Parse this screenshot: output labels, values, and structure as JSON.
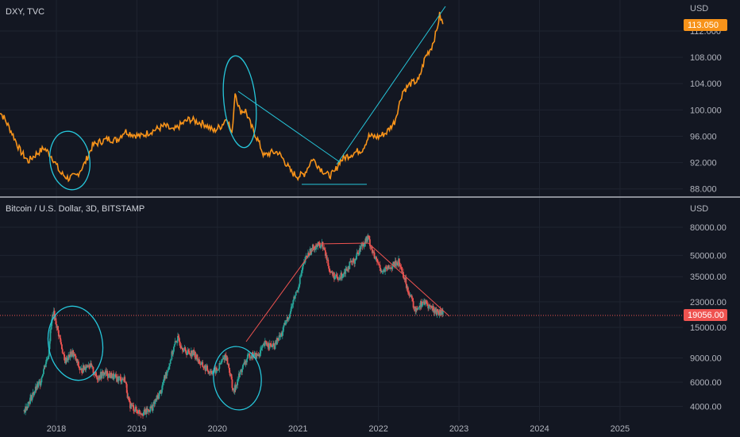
{
  "chart_data": [
    {
      "type": "line",
      "title": "DXY, TVC",
      "currency": "USD",
      "color": "#f7931a",
      "last_value": 113.05,
      "last_label": "113.050",
      "ylim": [
        87,
        115.5
      ],
      "y_ticks": [
        {
          "value": 88,
          "label": "88.000"
        },
        {
          "value": 92,
          "label": "92.000"
        },
        {
          "value": 96,
          "label": "96.000"
        },
        {
          "value": 100,
          "label": "100.000"
        },
        {
          "value": 104,
          "label": "104.000"
        },
        {
          "value": 108,
          "label": "108.000"
        },
        {
          "value": 112,
          "label": "112.000"
        }
      ],
      "points": [
        [
          2017.25,
          100.6
        ],
        [
          2017.35,
          98.8
        ],
        [
          2017.45,
          96.5
        ],
        [
          2017.55,
          93.8
        ],
        [
          2017.65,
          92.2
        ],
        [
          2017.75,
          93.3
        ],
        [
          2017.85,
          94.2
        ],
        [
          2017.95,
          92.8
        ],
        [
          2018.05,
          90.4
        ],
        [
          2018.15,
          89.6
        ],
        [
          2018.25,
          90.0
        ],
        [
          2018.35,
          91.8
        ],
        [
          2018.45,
          94.6
        ],
        [
          2018.55,
          95.2
        ],
        [
          2018.65,
          95.6
        ],
        [
          2018.75,
          95.4
        ],
        [
          2018.85,
          96.8
        ],
        [
          2018.95,
          96.3
        ],
        [
          2019.05,
          96.0
        ],
        [
          2019.15,
          96.6
        ],
        [
          2019.25,
          97.1
        ],
        [
          2019.35,
          97.6
        ],
        [
          2019.45,
          96.8
        ],
        [
          2019.55,
          97.8
        ],
        [
          2019.65,
          98.6
        ],
        [
          2019.75,
          98.2
        ],
        [
          2019.85,
          97.8
        ],
        [
          2019.95,
          96.8
        ],
        [
          2020.05,
          97.6
        ],
        [
          2020.12,
          98.9
        ],
        [
          2020.18,
          96.2
        ],
        [
          2020.22,
          102.8
        ],
        [
          2020.28,
          99.8
        ],
        [
          2020.35,
          99.9
        ],
        [
          2020.42,
          97.5
        ],
        [
          2020.5,
          95.5
        ],
        [
          2020.58,
          93.0
        ],
        [
          2020.66,
          93.5
        ],
        [
          2020.75,
          93.6
        ],
        [
          2020.83,
          92.3
        ],
        [
          2020.92,
          90.5
        ],
        [
          2021.0,
          89.9
        ],
        [
          2021.08,
          90.3
        ],
        [
          2021.18,
          92.6
        ],
        [
          2021.28,
          91.1
        ],
        [
          2021.38,
          90.0
        ],
        [
          2021.45,
          90.4
        ],
        [
          2021.52,
          92.2
        ],
        [
          2021.6,
          92.9
        ],
        [
          2021.7,
          93.5
        ],
        [
          2021.8,
          94.0
        ],
        [
          2021.88,
          96.0
        ],
        [
          2022.0,
          95.9
        ],
        [
          2022.1,
          96.6
        ],
        [
          2022.2,
          98.2
        ],
        [
          2022.3,
          102.8
        ],
        [
          2022.4,
          104.0
        ],
        [
          2022.5,
          104.5
        ],
        [
          2022.58,
          108.0
        ],
        [
          2022.66,
          109.6
        ],
        [
          2022.72,
          111.9
        ],
        [
          2022.76,
          114.4
        ],
        [
          2022.8,
          113.05
        ]
      ]
    },
    {
      "type": "line",
      "title": "Bitcoin / U.S. Dollar, 3D, BITSTAMP",
      "currency": "USD",
      "color": "#26a69a",
      "last_value": 19056,
      "last_label": "19056.00",
      "ylim": [
        3300,
        110000
      ],
      "scale": "log",
      "y_ticks": [
        {
          "value": 4000,
          "label": "4000.00"
        },
        {
          "value": 6000,
          "label": "6000.00"
        },
        {
          "value": 9000,
          "label": "9000.00"
        },
        {
          "value": 15000,
          "label": "15000.00"
        },
        {
          "value": 23000,
          "label": "23000.00"
        },
        {
          "value": 35000,
          "label": "35000.00"
        },
        {
          "value": 50000,
          "label": "50000.00"
        },
        {
          "value": 80000,
          "label": "80000.00"
        }
      ],
      "points": [
        [
          2017.6,
          3700
        ],
        [
          2017.7,
          4800
        ],
        [
          2017.8,
          6000
        ],
        [
          2017.9,
          9500
        ],
        [
          2017.96,
          19500
        ],
        [
          2018.02,
          14000
        ],
        [
          2018.1,
          8500
        ],
        [
          2018.2,
          9800
        ],
        [
          2018.3,
          7200
        ],
        [
          2018.4,
          8200
        ],
        [
          2018.5,
          6500
        ],
        [
          2018.6,
          7000
        ],
        [
          2018.75,
          6400
        ],
        [
          2018.85,
          6300
        ],
        [
          2018.9,
          4200
        ],
        [
          2019.0,
          3700
        ],
        [
          2019.1,
          3600
        ],
        [
          2019.2,
          4000
        ],
        [
          2019.3,
          5200
        ],
        [
          2019.4,
          8000
        ],
        [
          2019.5,
          12500
        ],
        [
          2019.6,
          10000
        ],
        [
          2019.7,
          9800
        ],
        [
          2019.8,
          8000
        ],
        [
          2019.9,
          7200
        ],
        [
          2020.0,
          7300
        ],
        [
          2020.1,
          9500
        ],
        [
          2020.2,
          5000
        ],
        [
          2020.3,
          7400
        ],
        [
          2020.4,
          9500
        ],
        [
          2020.5,
          9300
        ],
        [
          2020.6,
          11500
        ],
        [
          2020.7,
          10800
        ],
        [
          2020.8,
          13500
        ],
        [
          2020.9,
          19000
        ],
        [
          2021.0,
          29000
        ],
        [
          2021.1,
          48000
        ],
        [
          2021.2,
          58000
        ],
        [
          2021.3,
          60000
        ],
        [
          2021.4,
          38000
        ],
        [
          2021.5,
          33000
        ],
        [
          2021.6,
          40000
        ],
        [
          2021.7,
          46000
        ],
        [
          2021.8,
          60000
        ],
        [
          2021.87,
          67000
        ],
        [
          2021.95,
          48000
        ],
        [
          2022.05,
          38000
        ],
        [
          2022.15,
          41000
        ],
        [
          2022.25,
          45000
        ],
        [
          2022.35,
          30000
        ],
        [
          2022.45,
          20000
        ],
        [
          2022.55,
          23000
        ],
        [
          2022.65,
          21000
        ],
        [
          2022.72,
          19500
        ],
        [
          2022.8,
          19056
        ]
      ]
    }
  ],
  "x_axis": {
    "xlim": [
      2017.3,
      2025.78
    ],
    "ticks": [
      {
        "value": 2018.0,
        "label": "2018"
      },
      {
        "value": 2019.0,
        "label": "2019"
      },
      {
        "value": 2020.0,
        "label": "2020"
      },
      {
        "value": 2021.0,
        "label": "2021"
      },
      {
        "value": 2022.0,
        "label": "2022"
      },
      {
        "value": 2023.0,
        "label": "2023"
      },
      {
        "value": 2024.0,
        "label": "2024"
      },
      {
        "value": 2025.0,
        "label": "2025"
      }
    ]
  },
  "colors": {
    "background": "#131722",
    "grid": "#1f2430",
    "dxy_line": "#f7931a",
    "annotation_teal": "#26c6da",
    "annotation_red": "#ef5350",
    "candle_up": "#26a69a",
    "candle_down": "#ef5350",
    "price_badge_dxy": "#f7931a",
    "price_badge_btc": "#ef5350"
  }
}
